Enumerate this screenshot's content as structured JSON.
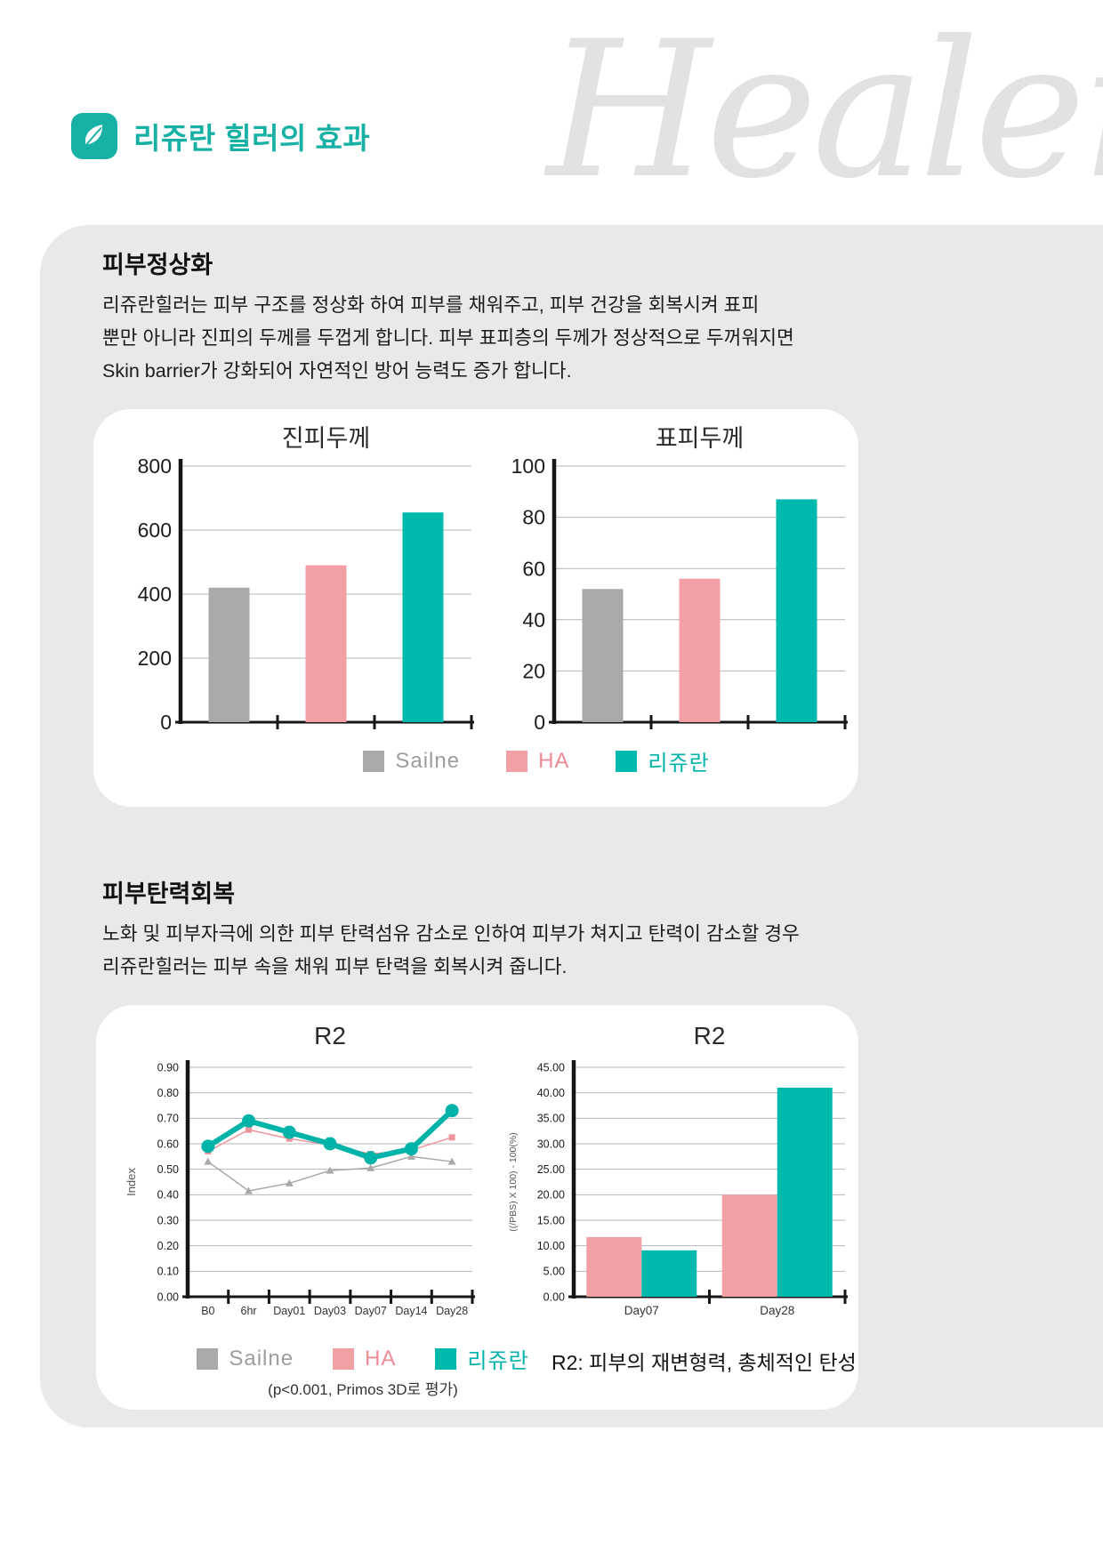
{
  "header": {
    "title": "리쥬란 힐러의 효과",
    "watermark": "Healer",
    "logo_icon": "leaf-icon"
  },
  "sections": [
    {
      "heading": "피부정상화",
      "lines": [
        "리쥬란힐러는 피부 구조를 정상화 하여 피부를 채워주고, 피부 건강을 회복시켜 표피",
        "뿐만 아니라 진피의 두께를 두껍게 합니다. 피부 표피층의 두께가 정상적으로 두꺼워지면",
        "Skin barrier가 강화되어 자연적인 방어 능력도 증가 합니다."
      ]
    },
    {
      "heading": "피부탄력회복",
      "lines": [
        "노화 및 피부자극에 의한 피부 탄력섬유 감소로 인하여 피부가 쳐지고 탄력이 감소할 경우",
        "리쥬란힐러는 피부 속을 채워 피부 탄력을 회복시켜 줍니다."
      ]
    }
  ],
  "legend": {
    "items": [
      {
        "label": "Sailne",
        "color": "#a9a9a9",
        "text_color": "#9d9d9d"
      },
      {
        "label": "HA",
        "color": "#f2a0a6",
        "text_color": "#f08a95"
      },
      {
        "label": "리쥬란",
        "color": "#00b9ad",
        "text_color": "#00b3aa"
      }
    ]
  },
  "notes": {
    "p_value": "(p<0.001, Primos 3D로 평가)",
    "r2_definition": "R2: 피부의 재변형력, 총체적인 탄성"
  },
  "colors": {
    "accent_teal": "#17b0a4",
    "chart_teal": "#00b9ad",
    "chart_pink": "#f2a0a6",
    "chart_gray": "#a9a9a9",
    "panel_background": "#e9e9e9",
    "watermark": "#e2e2e2"
  },
  "chart_data": [
    {
      "type": "bar",
      "title": "진피두께",
      "categories": [
        "Sailne",
        "HA",
        "리쥬란"
      ],
      "values": [
        420,
        490,
        655
      ],
      "bar_colors": [
        "#a9a9a9",
        "#f2a0a6",
        "#00b9ad"
      ],
      "ylim": [
        0,
        800
      ],
      "ytick_step": 200,
      "tick_decimals": 0,
      "grid": true,
      "legend_position": "bottom"
    },
    {
      "type": "bar",
      "title": "표피두께",
      "categories": [
        "Sailne",
        "HA",
        "리쥬란"
      ],
      "values": [
        52,
        56,
        87
      ],
      "bar_colors": [
        "#a9a9a9",
        "#f2a0a6",
        "#00b9ad"
      ],
      "ylim": [
        0,
        100
      ],
      "ytick_step": 20,
      "tick_decimals": 0,
      "grid": true,
      "legend_position": "bottom"
    },
    {
      "type": "line",
      "title": "R2",
      "xlabel": "",
      "ylabel": "Index",
      "categories": [
        "B0",
        "6hr",
        "Day01",
        "Day03",
        "Day07",
        "Day14",
        "Day28"
      ],
      "series": [
        {
          "name": "Sailne",
          "color": "#a9a9a9",
          "marker": "triangle",
          "line_width": 1.5,
          "values": [
            0.53,
            0.415,
            0.445,
            0.495,
            0.505,
            0.55,
            0.53
          ]
        },
        {
          "name": "HA",
          "color": "#f0959c",
          "marker": "square",
          "line_width": 1.5,
          "values": [
            0.57,
            0.655,
            0.62,
            0.595,
            0.56,
            0.575,
            0.625
          ]
        },
        {
          "name": "리쥬란",
          "color": "#00b3a9",
          "marker": "circle",
          "line_width": 6,
          "values": [
            0.59,
            0.69,
            0.645,
            0.6,
            0.545,
            0.58,
            0.73
          ]
        }
      ],
      "ylim": [
        0,
        0.9
      ],
      "ytick_step": 0.1,
      "tick_decimals": 2,
      "grid": true,
      "legend_position": "bottom"
    },
    {
      "type": "grouped_bar",
      "title": "R2",
      "ylabel": "((/PBS) X 100) - 100(%)",
      "categories": [
        "Day07",
        "Day28"
      ],
      "series": [
        {
          "name": "HA",
          "color": "#f2a0a6",
          "values": [
            11.7,
            20
          ]
        },
        {
          "name": "리쥬란",
          "color": "#00b9ad",
          "values": [
            9.1,
            41
          ]
        }
      ],
      "ylim": [
        0,
        45
      ],
      "ytick_step": 5,
      "tick_decimals": 2,
      "grid": true
    }
  ]
}
